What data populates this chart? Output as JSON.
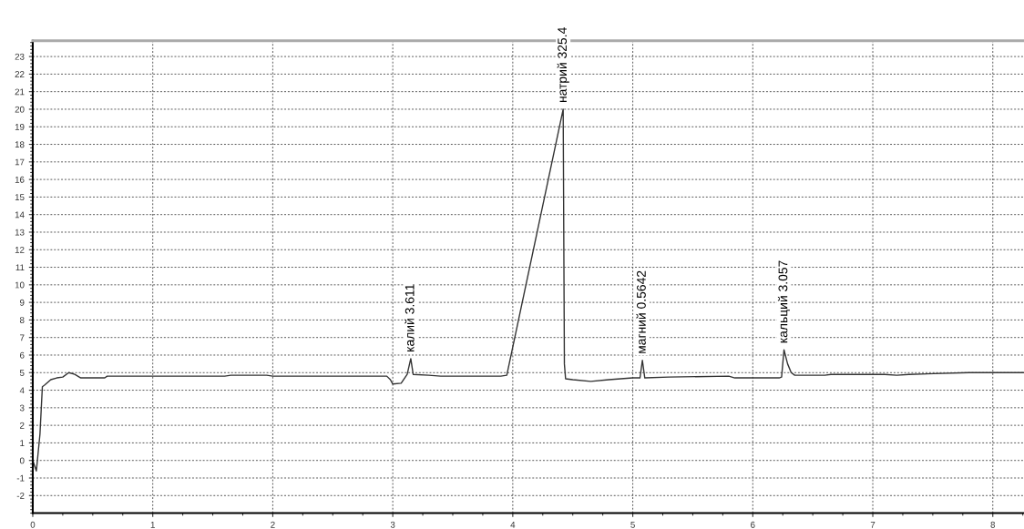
{
  "chart_data": {
    "type": "line",
    "x": [
      0,
      0.03,
      0.06,
      0.08,
      0.1,
      0.15,
      0.2,
      0.25,
      0.3,
      0.35,
      0.4,
      0.6,
      0.62,
      1.6,
      1.65,
      1.95,
      2.0,
      2.95,
      2.98,
      3.0,
      3.07,
      3.12,
      3.15,
      3.17,
      3.3,
      3.4,
      3.9,
      3.95,
      4.42,
      4.43,
      4.44,
      4.5,
      4.65,
      4.8,
      5.0,
      5.06,
      5.08,
      5.1,
      5.3,
      5.8,
      5.85,
      6.22,
      6.24,
      6.26,
      6.29,
      6.32,
      6.35,
      6.6,
      6.65,
      7.1,
      7.2,
      7.3,
      7.8,
      8.26
    ],
    "series": [
      {
        "color": "#333333",
        "values": [
          0,
          -0.6,
          1.5,
          4.2,
          4.3,
          4.6,
          4.7,
          4.75,
          5.0,
          4.9,
          4.7,
          4.7,
          4.8,
          4.8,
          4.85,
          4.85,
          4.8,
          4.8,
          4.6,
          4.35,
          4.4,
          4.9,
          5.8,
          4.9,
          4.85,
          4.8,
          4.8,
          4.85,
          20.0,
          5.5,
          4.65,
          4.6,
          4.5,
          4.6,
          4.7,
          4.7,
          5.7,
          4.7,
          4.75,
          4.8,
          4.7,
          4.7,
          4.75,
          6.3,
          5.5,
          5.0,
          4.85,
          4.85,
          4.9,
          4.9,
          4.85,
          4.9,
          5.0,
          5.0
        ]
      }
    ],
    "xlim": [
      0,
      8.26
    ],
    "ylim": [
      -3.0,
      23.9
    ],
    "xticks": [
      0,
      1,
      2,
      3,
      4,
      5,
      6,
      7,
      8
    ],
    "yticks": [
      -2,
      -1,
      0,
      1,
      2,
      3,
      4,
      5,
      6,
      7,
      8,
      9,
      10,
      11,
      12,
      13,
      14,
      15,
      16,
      17,
      18,
      19,
      20,
      21,
      22,
      23
    ],
    "grid": true,
    "line_style": "solid",
    "marker": "none",
    "annotations": [
      {
        "text": "калий 3.611",
        "x": 3.15,
        "y": 5.8
      },
      {
        "text": "натрий 325.4",
        "x": 4.42,
        "y": 20.0
      },
      {
        "text": "магний 0.5642",
        "x": 5.08,
        "y": 5.7
      },
      {
        "text": "кальций 3.057",
        "x": 6.26,
        "y": 6.3
      }
    ]
  }
}
